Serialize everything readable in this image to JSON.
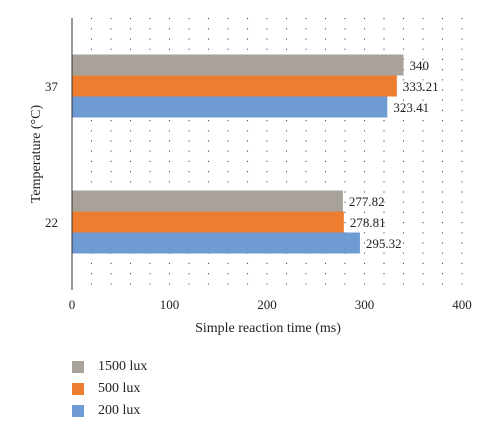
{
  "chart_data": {
    "type": "bar",
    "orientation": "horizontal",
    "categories": [
      "37",
      "22"
    ],
    "series": [
      {
        "name": "1500 lux",
        "color": "#a8a29a",
        "values": [
          340,
          277.82
        ],
        "labels": [
          "340",
          "277.82"
        ]
      },
      {
        "name": "500 lux",
        "color": "#ed7d31",
        "values": [
          333.21,
          278.81
        ],
        "labels": [
          "333.21",
          "278.81"
        ]
      },
      {
        "name": "200 lux",
        "color": "#6f9bd4",
        "values": [
          323.41,
          295.32
        ],
        "labels": [
          "323.41",
          "295.32"
        ]
      }
    ],
    "xlabel": "Simple reaction time (ms)",
    "ylabel": "Temperature (°C)",
    "xlim": [
      0,
      400
    ],
    "xticks": [
      "0",
      "100",
      "200",
      "300",
      "400"
    ],
    "grid": "dotted vertical",
    "legend_position": "bottom-left"
  }
}
